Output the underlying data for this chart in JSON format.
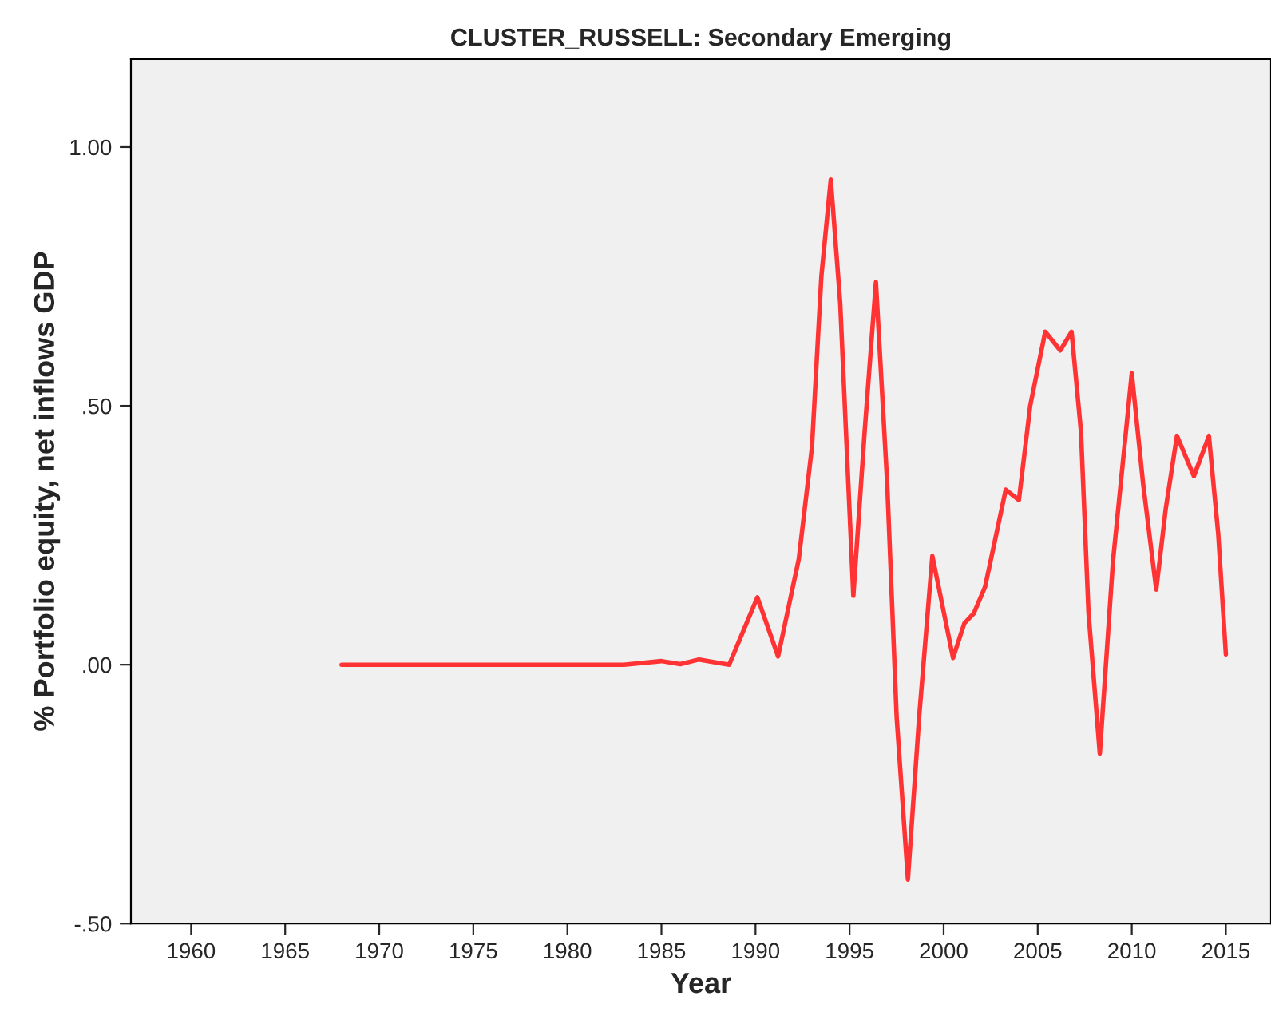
{
  "chart_data": {
    "type": "line",
    "title": "CLUSTER_RUSSELL: Secondary Emerging",
    "xlabel": "Year",
    "ylabel": "% Portfolio equity, net inflows GDP",
    "xlim": [
      1956.8,
      2017.4
    ],
    "xticks": [
      1960,
      1965,
      1970,
      1975,
      1980,
      1985,
      1990,
      1995,
      2000,
      2005,
      2010,
      2015
    ],
    "ylim": [
      -0.5,
      1.17
    ],
    "yticks": [
      {
        "value": -0.5,
        "label": "-.50"
      },
      {
        "value": 0,
        "label": ".00"
      },
      {
        "value": 0.5,
        "label": ".50"
      },
      {
        "value": 1.0,
        "label": "1.00"
      }
    ],
    "grid": false,
    "legend": false,
    "marker": "none",
    "line_style": "solid",
    "series": [
      {
        "color": "#ff3333",
        "x": [
          1968,
          1975,
          1983,
          1985,
          1986,
          1987,
          1988.6,
          1990.1,
          1991.2,
          1992.3,
          1993,
          1993.5,
          1994,
          1994.5,
          1995.2,
          1995.8,
          1996.4,
          1997,
          1997.5,
          1998.1,
          1998.7,
          1999.4,
          2000.5,
          2001.1,
          2001.6,
          2002.2,
          2003.3,
          2004,
          2004.6,
          2005.4,
          2006.2,
          2006.8,
          2007.3,
          2007.7,
          2008.3,
          2009,
          2010,
          2010.6,
          2011.3,
          2011.8,
          2012.4,
          2013.3,
          2014.1,
          2014.6,
          2015
        ],
        "values": [
          0,
          0,
          0,
          0.007,
          0.001,
          0.01,
          0.0,
          0.13,
          0.016,
          0.204,
          0.42,
          0.75,
          0.937,
          0.7,
          0.133,
          0.45,
          0.739,
          0.35,
          -0.1,
          -0.415,
          -0.1,
          0.21,
          0.013,
          0.08,
          0.099,
          0.15,
          0.338,
          0.318,
          0.5,
          0.643,
          0.607,
          0.643,
          0.45,
          0.1,
          -0.172,
          0.2,
          0.563,
          0.35,
          0.145,
          0.3,
          0.442,
          0.364,
          0.442,
          0.25,
          0.02
        ]
      }
    ]
  }
}
